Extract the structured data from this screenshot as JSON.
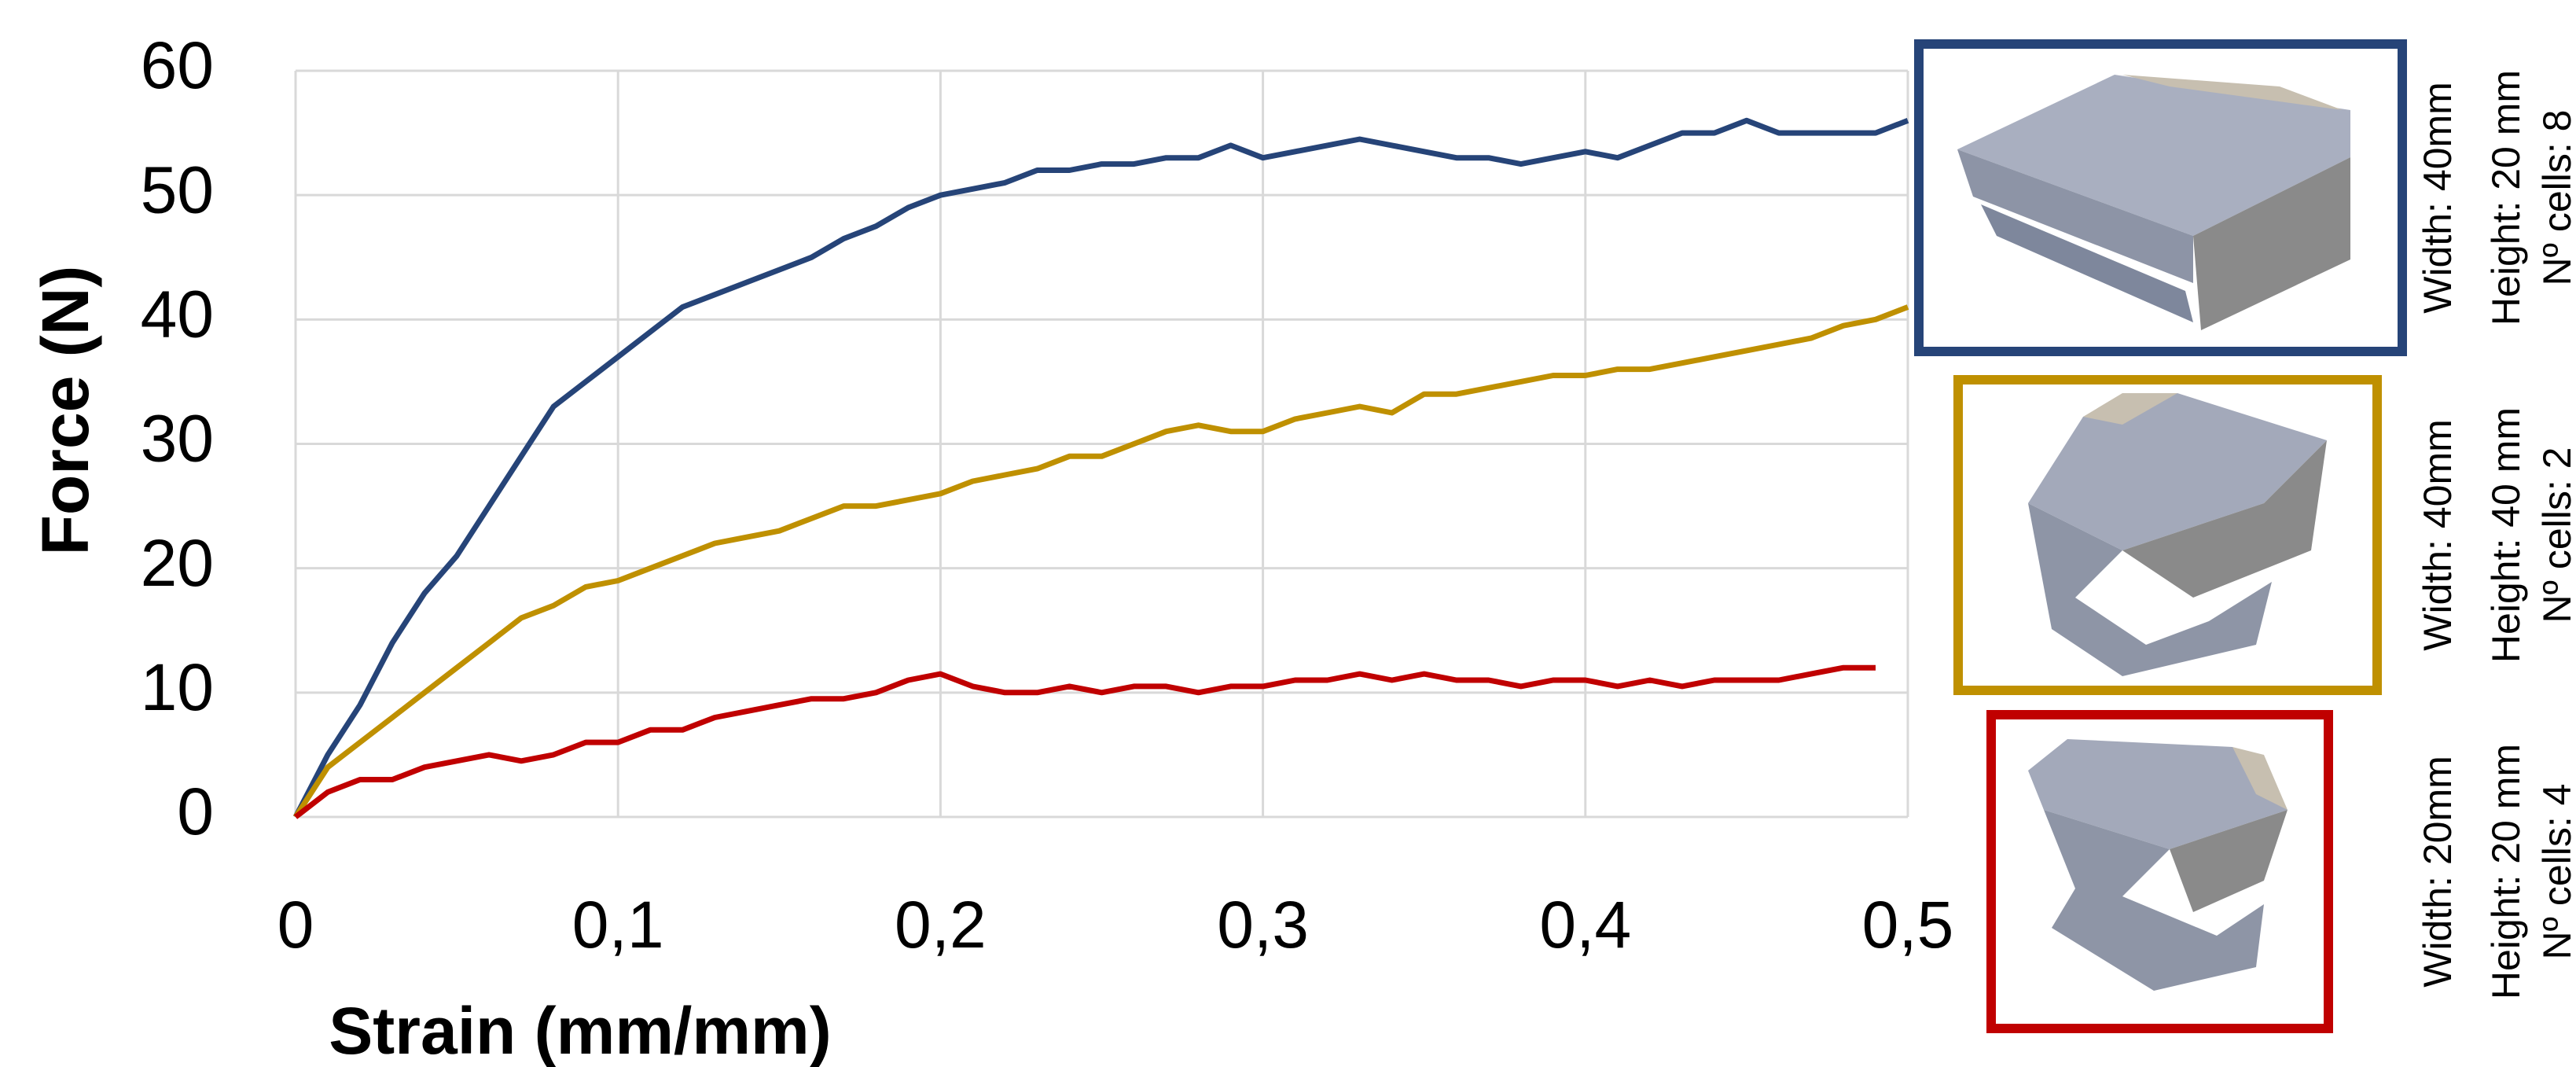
{
  "chart_data": {
    "type": "line",
    "x_label": "Strain (mm/mm)",
    "y_label": "Force (N)",
    "x": [
      0,
      0.01,
      0.02,
      0.03,
      0.04,
      0.05,
      0.06,
      0.07,
      0.08,
      0.09,
      0.1,
      0.11,
      0.12,
      0.13,
      0.14,
      0.15,
      0.16,
      0.17,
      0.18,
      0.19,
      0.2,
      0.21,
      0.22,
      0.23,
      0.24,
      0.25,
      0.26,
      0.27,
      0.28,
      0.29,
      0.3,
      0.31,
      0.32,
      0.33,
      0.34,
      0.35,
      0.36,
      0.37,
      0.38,
      0.39,
      0.4,
      0.41,
      0.42,
      0.43,
      0.44,
      0.45,
      0.46,
      0.47,
      0.48,
      0.49,
      0.5
    ],
    "series": [
      {
        "color": "#264478",
        "specimen": [
          "Width: 40mm",
          "Height: 20 mm",
          "Nº cells: 8"
        ],
        "values": [
          0,
          5,
          9,
          14,
          18,
          21,
          25,
          29,
          33,
          35,
          37,
          39,
          41,
          42,
          43,
          44,
          45,
          46.5,
          47.5,
          49,
          50,
          50.5,
          51,
          52,
          52,
          52.5,
          52.5,
          53,
          53,
          54,
          53,
          53.5,
          54,
          54.5,
          54,
          53.5,
          53,
          53,
          52.5,
          53,
          53.5,
          53,
          54,
          55,
          55,
          56,
          55,
          55,
          55,
          55,
          56
        ]
      },
      {
        "color": "#bf9000",
        "specimen": [
          "Width: 40mm",
          "Height: 40 mm",
          "Nº cells: 2"
        ],
        "values": [
          0,
          4,
          6,
          8,
          10,
          12,
          14,
          16,
          17,
          18.5,
          19,
          20,
          21,
          22,
          22.5,
          23,
          24,
          25,
          25,
          25.5,
          26,
          27,
          27.5,
          28,
          29,
          29,
          30,
          31,
          31.5,
          31,
          31,
          32,
          32.5,
          33,
          32.5,
          34,
          34,
          34.5,
          35,
          35.5,
          35.5,
          36,
          36,
          36.5,
          37,
          37.5,
          38,
          38.5,
          39.5,
          40,
          41
        ]
      },
      {
        "color": "#c00000",
        "specimen": [
          "Width: 20mm",
          "Height: 20 mm",
          "Nº cells: 4"
        ],
        "values": [
          0,
          2,
          3,
          3,
          4,
          4.5,
          5,
          4.5,
          5,
          6,
          6,
          7,
          7,
          8,
          8.5,
          9,
          9.5,
          9.5,
          10,
          11,
          11.5,
          10.5,
          10,
          10,
          10.5,
          10,
          10.5,
          10.5,
          10,
          10.5,
          10.5,
          11,
          11,
          11.5,
          11,
          11.5,
          11,
          11,
          10.5,
          11,
          11,
          10.5,
          11,
          10.5,
          11,
          11,
          11,
          11.5,
          12,
          12,
          null
        ]
      }
    ],
    "xlim": [
      0,
      0.5
    ],
    "ylim": [
      0,
      60
    ],
    "xticks": [
      0,
      {
        "value": 0.1,
        "label": "0,1"
      },
      {
        "value": 0.2,
        "label": "0,2"
      },
      {
        "value": 0.3,
        "label": "0,3"
      },
      {
        "value": 0.4,
        "label": "0,4"
      },
      {
        "value": 0.5,
        "label": "0,5"
      }
    ],
    "yticks": [
      0,
      10,
      20,
      30,
      40,
      50,
      60
    ],
    "grid": true
  }
}
